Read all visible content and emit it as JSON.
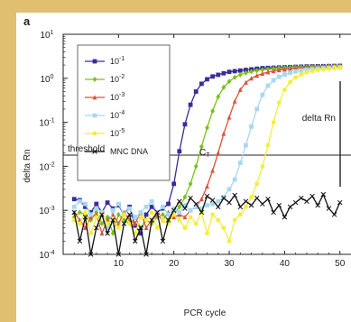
{
  "chart_data": {
    "type": "line",
    "panel_label": "a",
    "xlabel": "PCR cycle",
    "ylabel": "delta Rn",
    "xlim": [
      0,
      52
    ],
    "ylim": [
      0.0001,
      10
    ],
    "yscale": "log",
    "x_ticks": [
      10,
      20,
      30,
      40,
      50
    ],
    "x_tick_labels": [
      "10",
      "20",
      "30",
      "40",
      "50"
    ],
    "y_ticks": [
      0.0001,
      0.001,
      0.01,
      0.1,
      1,
      10
    ],
    "y_tick_labels": [
      {
        "base": "10",
        "exp": "-4"
      },
      {
        "base": "10",
        "exp": "-3"
      },
      {
        "base": "10",
        "exp": "-2"
      },
      {
        "base": "10",
        "exp": "-1"
      },
      {
        "base": "10",
        "exp": "0"
      },
      {
        "base": "10",
        "exp": "1"
      }
    ],
    "threshold": {
      "value": 0.018,
      "label": "threshold"
    },
    "annotations": {
      "ct_main": "C",
      "ct_sub": "T",
      "delta_rn": "delta Rn"
    },
    "legend_position": "top-left",
    "series": [
      {
        "name": {
          "base": "10",
          "exp": "-1"
        },
        "color": "#3a2c9a",
        "marker": "square",
        "x": [
          2,
          3,
          4,
          5,
          6,
          7,
          8,
          9,
          10,
          11,
          12,
          13,
          14,
          15,
          16,
          17,
          18,
          19,
          20,
          21,
          22,
          23,
          24,
          25,
          26,
          27,
          28,
          29,
          30,
          31,
          32,
          33,
          34,
          35,
          36,
          37,
          38,
          39,
          40,
          41,
          42,
          43,
          44,
          45,
          46,
          47,
          48,
          49,
          50
        ],
        "y": [
          0.0018,
          0.0017,
          0.0012,
          0.0009,
          0.0014,
          0.0009,
          0.0015,
          0.0011,
          0.0013,
          0.0008,
          0.0012,
          0.00045,
          0.0003,
          0.0008,
          0.0012,
          0.0009,
          0.0011,
          0.0014,
          0.004,
          0.022,
          0.09,
          0.25,
          0.5,
          0.75,
          0.95,
          1.1,
          1.2,
          1.3,
          1.4,
          1.45,
          1.5,
          1.55,
          1.6,
          1.65,
          1.7,
          1.72,
          1.74,
          1.76,
          1.78,
          1.8,
          1.82,
          1.84,
          1.86,
          1.87,
          1.88,
          1.89,
          1.9,
          1.91,
          1.92
        ]
      },
      {
        "name": {
          "base": "10",
          "exp": "-2"
        },
        "color": "#7ac21a",
        "marker": "diamond",
        "x": [
          2,
          3,
          4,
          5,
          6,
          7,
          8,
          9,
          10,
          11,
          12,
          13,
          14,
          15,
          16,
          17,
          18,
          19,
          20,
          21,
          22,
          23,
          24,
          25,
          26,
          27,
          28,
          29,
          30,
          31,
          32,
          33,
          34,
          35,
          36,
          37,
          38,
          39,
          40,
          41,
          42,
          43,
          44,
          45,
          46,
          47,
          48,
          49,
          50
        ],
        "y": [
          0.0007,
          0.0009,
          0.0008,
          0.0006,
          0.0009,
          0.0005,
          0.0007,
          0.0003,
          0.0008,
          0.0006,
          0.0005,
          0.0007,
          0.0004,
          0.0006,
          0.0005,
          0.0007,
          0.0008,
          0.0006,
          0.0008,
          0.0012,
          0.002,
          0.004,
          0.01,
          0.028,
          0.075,
          0.18,
          0.38,
          0.62,
          0.85,
          1.05,
          1.2,
          1.32,
          1.42,
          1.5,
          1.56,
          1.62,
          1.67,
          1.7,
          1.73,
          1.76,
          1.78,
          1.8,
          1.82,
          1.84,
          1.85,
          1.86,
          1.88,
          1.89,
          1.9
        ]
      },
      {
        "name": {
          "base": "10",
          "exp": "-3"
        },
        "color": "#e0503a",
        "marker": "triangle",
        "x": [
          2,
          3,
          4,
          5,
          6,
          7,
          8,
          9,
          10,
          11,
          12,
          13,
          14,
          15,
          16,
          17,
          18,
          19,
          20,
          21,
          22,
          23,
          24,
          25,
          26,
          27,
          28,
          29,
          30,
          31,
          32,
          33,
          34,
          35,
          36,
          37,
          38,
          39,
          40,
          41,
          42,
          43,
          44,
          45,
          46,
          47,
          48,
          49,
          50
        ],
        "y": [
          0.0009,
          0.0006,
          0.0004,
          0.0007,
          0.0008,
          0.0003,
          0.0006,
          0.0008,
          0.0005,
          0.0009,
          0.0006,
          0.0005,
          0.0009,
          0.0004,
          0.0006,
          0.0008,
          0.0006,
          0.0009,
          0.0007,
          0.0008,
          0.0007,
          0.001,
          0.0012,
          0.0018,
          0.0035,
          0.008,
          0.02,
          0.055,
          0.13,
          0.3,
          0.55,
          0.8,
          1.0,
          1.15,
          1.28,
          1.38,
          1.46,
          1.53,
          1.58,
          1.63,
          1.67,
          1.7,
          1.73,
          1.76,
          1.78,
          1.8,
          1.82,
          1.83,
          1.85
        ]
      },
      {
        "name": {
          "base": "10",
          "exp": "-4"
        },
        "color": "#a8d8f0",
        "marker": "square",
        "x": [
          2,
          3,
          4,
          5,
          6,
          7,
          8,
          9,
          10,
          11,
          12,
          13,
          14,
          15,
          16,
          17,
          18,
          19,
          20,
          21,
          22,
          23,
          24,
          25,
          26,
          27,
          28,
          29,
          30,
          31,
          32,
          33,
          34,
          35,
          36,
          37,
          38,
          39,
          40,
          41,
          42,
          43,
          44,
          45,
          46,
          47,
          48,
          49,
          50
        ],
        "y": [
          0.0012,
          0.0016,
          0.0014,
          0.0008,
          0.0011,
          0.0009,
          0.0004,
          0.001,
          0.0014,
          0.0008,
          0.0011,
          0.0007,
          0.0009,
          0.0012,
          0.0016,
          0.0009,
          0.0012,
          0.0008,
          0.0011,
          0.0009,
          0.0013,
          0.001,
          0.0012,
          0.0011,
          0.0013,
          0.0014,
          0.0016,
          0.002,
          0.003,
          0.005,
          0.012,
          0.03,
          0.08,
          0.2,
          0.42,
          0.68,
          0.9,
          1.08,
          1.22,
          1.34,
          1.43,
          1.5,
          1.56,
          1.62,
          1.66,
          1.7,
          1.73,
          1.76,
          1.78
        ]
      },
      {
        "name": {
          "base": "10",
          "exp": "-5"
        },
        "color": "#f4ee3a",
        "marker": "circle",
        "x": [
          2,
          3,
          4,
          5,
          6,
          7,
          8,
          9,
          10,
          11,
          12,
          13,
          14,
          15,
          16,
          17,
          18,
          19,
          20,
          21,
          22,
          23,
          24,
          25,
          26,
          27,
          28,
          29,
          30,
          31,
          32,
          33,
          34,
          35,
          36,
          37,
          38,
          39,
          40,
          41,
          42,
          43,
          44,
          45,
          46,
          47,
          48,
          49,
          50
        ],
        "y": [
          0.0006,
          0.0005,
          0.0009,
          0.0003,
          0.0007,
          0.0008,
          0.0005,
          0.0006,
          0.0004,
          0.0008,
          0.0005,
          0.0003,
          0.0007,
          0.0006,
          0.0009,
          0.0004,
          0.0006,
          0.0005,
          0.0008,
          0.0006,
          0.0004,
          0.0007,
          0.0005,
          0.0009,
          0.0003,
          0.0008,
          0.0006,
          0.0004,
          0.0002,
          0.0006,
          0.0008,
          0.0012,
          0.002,
          0.004,
          0.01,
          0.03,
          0.1,
          0.28,
          0.55,
          0.82,
          1.05,
          1.22,
          1.36,
          1.46,
          1.54,
          1.6,
          1.65,
          1.7,
          1.74
        ]
      },
      {
        "name": "MNC DNA",
        "color": "#111111",
        "marker": "x",
        "x": [
          2,
          3,
          4,
          5,
          6,
          7,
          8,
          9,
          10,
          11,
          12,
          13,
          14,
          15,
          16,
          17,
          18,
          19,
          20,
          21,
          22,
          23,
          24,
          25,
          26,
          27,
          28,
          29,
          30,
          31,
          32,
          33,
          34,
          35,
          36,
          37,
          38,
          39,
          40,
          41,
          42,
          43,
          44,
          45,
          46,
          47,
          48,
          49,
          50
        ],
        "y": [
          0.0009,
          0.0002,
          0.0007,
          0.0001,
          0.0004,
          0.0008,
          0.0003,
          0.0006,
          0.0001,
          0.0005,
          0.0008,
          0.0002,
          0.0004,
          0.0001,
          0.0006,
          0.0009,
          0.0002,
          0.0006,
          0.001,
          0.0016,
          0.0011,
          0.0019,
          0.0014,
          0.0009,
          0.0021,
          0.0017,
          0.0012,
          0.0019,
          0.0015,
          0.0022,
          0.0012,
          0.0016,
          0.0013,
          0.0019,
          0.0014,
          0.0018,
          0.0009,
          0.0013,
          0.0007,
          0.0012,
          0.0015,
          0.0019,
          0.0016,
          0.0021,
          0.0013,
          0.0023,
          0.0011,
          0.0008,
          0.0015
        ]
      }
    ]
  }
}
